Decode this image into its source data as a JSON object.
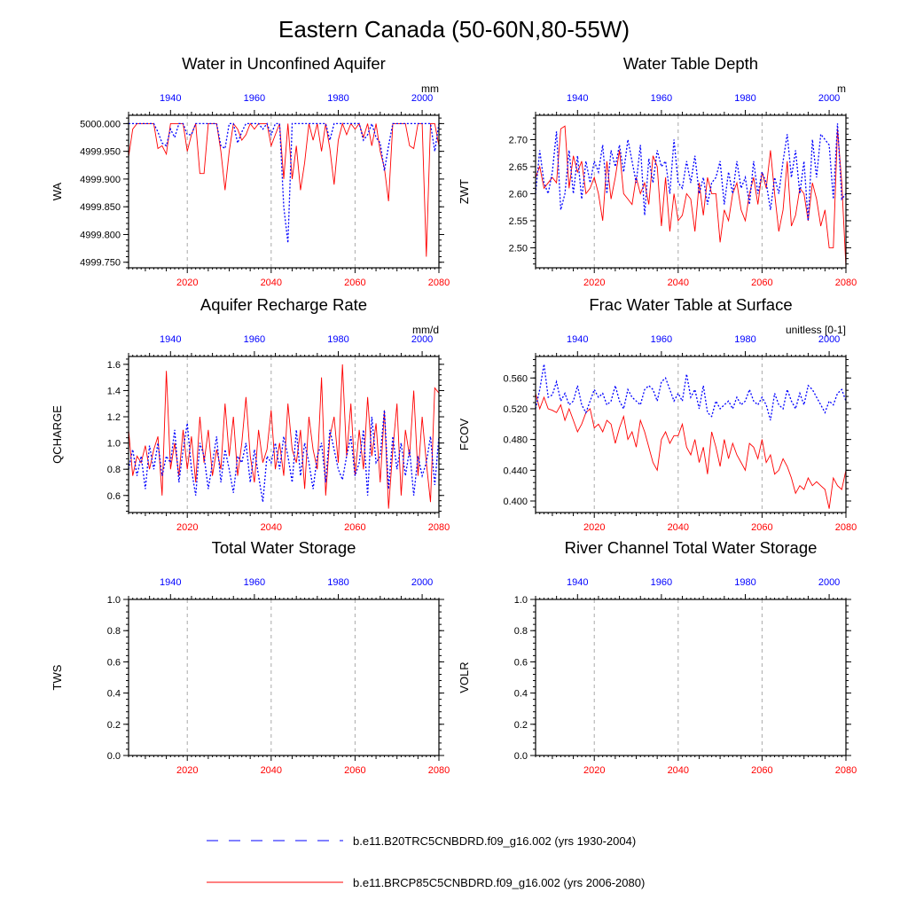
{
  "suptitle": "Eastern Canada (50-60N,80-55W)",
  "colors": {
    "future": "#ff0000",
    "hist": "#0000ff",
    "grid": "#aaaaaa",
    "axis": "#000000"
  },
  "legend": {
    "hist_label": "b.e11.B20TRC5CNBDRD.f09_g16.002 (yrs 1930-2004)",
    "future_label": "b.e11.BRCP85C5CNBDRD.f09_g16.002 (yrs 2006-2080)"
  },
  "chart_data": [
    {
      "type": "line",
      "title": "Water in Unconfined Aquifer",
      "ylabel": "WA",
      "units": "mm",
      "ylim": [
        4999.74,
        5000.015
      ],
      "yticks": [
        4999.75,
        4999.8,
        4999.85,
        4999.9,
        4999.95,
        5000.0
      ],
      "ytick_labels": [
        "4999.750",
        "4999.800",
        "4999.850",
        "4999.900",
        "4999.950",
        "5000.000"
      ],
      "ydigits": 3,
      "bottom_axis": {
        "range": [
          2006,
          2080
        ],
        "ticks": [
          2020,
          2040,
          2060,
          2080
        ],
        "labels": [
          "2020",
          "2040",
          "2060",
          "2080"
        ]
      },
      "top_axis": {
        "range": [
          1930,
          2004
        ],
        "ticks": [
          1940,
          1960,
          1980,
          2000
        ],
        "labels": [
          "1940",
          "1960",
          "1980",
          "2000"
        ]
      },
      "series": [
        {
          "name": "b.e11.BRCP85C5CNBDRD.f09_g16.002",
          "period": "2006-2080",
          "values": [
            4999.94,
            4999.99,
            5000.0,
            5000.0,
            5000.0,
            5000.0,
            5000.0,
            4999.955,
            4999.96,
            4999.945,
            5000.0,
            5000.0,
            5000.0,
            5000.0,
            4999.95,
            4999.98,
            5000.0,
            4999.91,
            4999.91,
            5000.0,
            5000.0,
            5000.0,
            4999.95,
            4999.88,
            4999.95,
            5000.0,
            4999.99,
            4999.97,
            4999.98,
            5000.0,
            4999.99,
            5000.0,
            5000.0,
            5000.0,
            4999.96,
            4999.98,
            5000.0,
            4999.9,
            5000.0,
            4999.9,
            4999.96,
            4999.88,
            4999.93,
            5000.0,
            4999.97,
            5000.0,
            4999.95,
            5000.0,
            4999.955,
            4999.89,
            4999.97,
            5000.0,
            4999.98,
            5000.0,
            4999.99,
            5000.0,
            4999.975,
            5000.0,
            4999.96,
            5000.0,
            4999.95,
            4999.92,
            4999.86,
            5000.0,
            5000.0,
            5000.0,
            5000.0,
            4999.96,
            4999.955,
            5000.0,
            5000.0,
            4999.76,
            5000.0,
            5000.0,
            4999.96
          ]
        },
        {
          "name": "b.e11.B20TRC5CNBDRD.f09_g16.002",
          "period": "1930-2004",
          "values": [
            5000.0,
            5000.0,
            5000.0,
            5000.0,
            5000.0,
            5000.0,
            5000.0,
            4999.985,
            4999.965,
            4999.96,
            4999.99,
            4999.975,
            5000.0,
            5000.0,
            4999.98,
            4999.98,
            5000.0,
            5000.0,
            5000.0,
            5000.0,
            5000.0,
            5000.0,
            4999.96,
            4999.955,
            5000.0,
            5000.0,
            4999.965,
            4999.985,
            5000.0,
            5000.0,
            5000.0,
            5000.0,
            4999.99,
            5000.0,
            4999.98,
            5000.0,
            5000.0,
            4999.85,
            4999.785,
            5000.0,
            5000.0,
            5000.0,
            5000.0,
            5000.0,
            5000.0,
            5000.0,
            5000.0,
            5000.0,
            4999.97,
            5000.0,
            5000.0,
            5000.0,
            5000.0,
            5000.0,
            5000.0,
            5000.0,
            4999.97,
            4999.98,
            5000.0,
            4999.975,
            4999.965,
            4999.915,
            4999.96,
            5000.0,
            5000.0,
            5000.0,
            5000.0,
            5000.0,
            5000.0,
            5000.0,
            5000.0,
            5000.0,
            5000.0,
            4999.95,
            5000.0
          ]
        }
      ]
    },
    {
      "type": "line",
      "title": "Water Table Depth",
      "ylabel": "ZWT",
      "units": "m",
      "ylim": [
        2.463,
        2.745
      ],
      "yticks": [
        2.5,
        2.55,
        2.6,
        2.65,
        2.7
      ],
      "ytick_labels": [
        "2.50",
        "2.55",
        "2.60",
        "2.65",
        "2.70"
      ],
      "ydigits": 2,
      "bottom_axis": {
        "range": [
          2006,
          2080
        ],
        "ticks": [
          2020,
          2040,
          2060,
          2080
        ],
        "labels": [
          "2020",
          "2040",
          "2060",
          "2080"
        ]
      },
      "top_axis": {
        "range": [
          1930,
          2004
        ],
        "ticks": [
          1940,
          1960,
          1980,
          2000
        ],
        "labels": [
          "1940",
          "1960",
          "1980",
          "2000"
        ]
      },
      "series": [
        {
          "name": "b.e11.BRCP85C5CNBDRD.f09_g16.002",
          "period": "2006-2080",
          "values": [
            2.63,
            2.65,
            2.61,
            2.62,
            2.63,
            2.62,
            2.72,
            2.725,
            2.61,
            2.67,
            2.64,
            2.66,
            2.6,
            2.61,
            2.63,
            2.6,
            2.55,
            2.66,
            2.59,
            2.63,
            2.68,
            2.6,
            2.59,
            2.58,
            2.63,
            2.6,
            2.62,
            2.58,
            2.67,
            2.65,
            2.54,
            2.63,
            2.53,
            2.6,
            2.55,
            2.56,
            2.6,
            2.59,
            2.53,
            2.62,
            2.56,
            2.63,
            2.6,
            2.6,
            2.51,
            2.57,
            2.55,
            2.6,
            2.62,
            2.57,
            2.55,
            2.6,
            2.63,
            2.58,
            2.64,
            2.61,
            2.68,
            2.6,
            2.53,
            2.57,
            2.66,
            2.54,
            2.56,
            2.61,
            2.6,
            2.55,
            2.62,
            2.59,
            2.54,
            2.57,
            2.5,
            2.5,
            2.72,
            2.62,
            2.465
          ]
        },
        {
          "name": "b.e11.B20TRC5CNBDRD.f09_g16.002",
          "period": "1930-2004",
          "values": [
            2.6,
            2.68,
            2.62,
            2.6,
            2.64,
            2.715,
            2.57,
            2.6,
            2.68,
            2.6,
            2.67,
            2.59,
            2.66,
            2.62,
            2.66,
            2.64,
            2.69,
            2.6,
            2.68,
            2.65,
            2.69,
            2.64,
            2.7,
            2.66,
            2.62,
            2.69,
            2.56,
            2.665,
            2.62,
            2.68,
            2.65,
            2.66,
            2.6,
            2.7,
            2.62,
            2.61,
            2.66,
            2.62,
            2.67,
            2.6,
            2.63,
            2.58,
            2.62,
            2.63,
            2.66,
            2.58,
            2.64,
            2.6,
            2.66,
            2.61,
            2.63,
            2.58,
            2.66,
            2.6,
            2.64,
            2.62,
            2.57,
            2.63,
            2.6,
            2.66,
            2.71,
            2.63,
            2.68,
            2.6,
            2.66,
            2.55,
            2.7,
            2.63,
            2.71,
            2.7,
            2.69,
            2.59,
            2.73,
            2.59,
            2.6
          ]
        }
      ]
    },
    {
      "type": "line",
      "title": "Aquifer Recharge Rate",
      "ylabel": "QCHARGE",
      "units": "mm/d",
      "ylim": [
        0.47,
        1.66
      ],
      "yticks": [
        0.6,
        0.8,
        1.0,
        1.2,
        1.4,
        1.6
      ],
      "ytick_labels": [
        "0.6",
        "0.8",
        "1.0",
        "1.2",
        "1.4",
        "1.6"
      ],
      "ydigits": 1,
      "bottom_axis": {
        "range": [
          2006,
          2080
        ],
        "ticks": [
          2020,
          2040,
          2060,
          2080
        ],
        "labels": [
          "2020",
          "2040",
          "2060",
          "2080"
        ]
      },
      "top_axis": {
        "range": [
          1930,
          2004
        ],
        "ticks": [
          1940,
          1960,
          1980,
          2000
        ],
        "labels": [
          "1940",
          "1960",
          "1980",
          "2000"
        ]
      },
      "series": [
        {
          "name": "b.e11.BRCP85C5CNBDRD.f09_g16.002",
          "period": "2006-2080",
          "values": [
            1.1,
            0.75,
            0.9,
            0.85,
            0.98,
            0.8,
            0.95,
            1.05,
            0.6,
            1.55,
            0.8,
            1.0,
            0.75,
            1.1,
            0.8,
            1.05,
            0.7,
            1.2,
            0.85,
            1.1,
            0.75,
            0.95,
            0.8,
            1.3,
            0.9,
            1.2,
            0.75,
            1.0,
            1.35,
            0.9,
            0.7,
            1.1,
            0.85,
            0.95,
            1.25,
            0.8,
            1.0,
            0.75,
            1.3,
            0.95,
            0.85,
            1.1,
            0.65,
            1.2,
            0.95,
            0.8,
            1.5,
            0.6,
            1.05,
            1.2,
            0.85,
            1.6,
            0.9,
            1.3,
            0.75,
            1.1,
            0.8,
            1.35,
            0.9,
            1.15,
            0.7,
            1.25,
            0.5,
            0.95,
            1.3,
            0.6,
            1.1,
            0.9,
            1.4,
            0.75,
            1.2,
            0.85,
            0.55,
            1.42,
            1.38
          ]
        },
        {
          "name": "b.e11.B20TRC5CNBDRD.f09_g16.002",
          "period": "1930-2004",
          "values": [
            0.8,
            0.95,
            0.75,
            0.9,
            0.65,
            0.98,
            0.8,
            1.0,
            0.75,
            0.9,
            0.85,
            1.1,
            0.7,
            0.95,
            1.15,
            0.8,
            0.6,
            1.0,
            0.9,
            0.65,
            0.85,
            1.05,
            0.7,
            0.95,
            0.8,
            0.62,
            0.9,
            0.85,
            1.0,
            0.7,
            0.95,
            0.75,
            0.55,
            0.9,
            0.85,
            1.0,
            0.8,
            1.05,
            0.9,
            0.7,
            1.1,
            0.75,
            1.0,
            0.85,
            0.65,
            0.9,
            1.0,
            0.7,
            1.1,
            0.95,
            0.8,
            0.72,
            0.9,
            1.05,
            0.75,
            0.85,
            1.1,
            0.6,
            1.2,
            0.85,
            0.9,
            1.25,
            0.65,
            1.05,
            0.8,
            1.0,
            0.75,
            0.95,
            0.6,
            0.9,
            0.75,
            0.85,
            1.05,
            0.68,
            1.05
          ]
        }
      ]
    },
    {
      "type": "line",
      "title": "Frac Water Table at Surface",
      "ylabel": "FCOV",
      "units": "unitless [0-1]",
      "ylim": [
        0.385,
        0.588
      ],
      "yticks": [
        0.4,
        0.44,
        0.48,
        0.52,
        0.56
      ],
      "ytick_labels": [
        "0.400",
        "0.440",
        "0.480",
        "0.520",
        "0.560"
      ],
      "ydigits": 3,
      "bottom_axis": {
        "range": [
          2006,
          2080
        ],
        "ticks": [
          2020,
          2040,
          2060,
          2080
        ],
        "labels": [
          "2020",
          "2040",
          "2060",
          "2080"
        ]
      },
      "top_axis": {
        "range": [
          1930,
          2004
        ],
        "ticks": [
          1940,
          1960,
          1980,
          2000
        ],
        "labels": [
          "1940",
          "1960",
          "1980",
          "2000"
        ]
      },
      "series": [
        {
          "name": "b.e11.BRCP85C5CNBDRD.f09_g16.002",
          "period": "2006-2080",
          "values": [
            0.54,
            0.52,
            0.535,
            0.52,
            0.518,
            0.515,
            0.525,
            0.505,
            0.52,
            0.505,
            0.49,
            0.5,
            0.515,
            0.52,
            0.495,
            0.5,
            0.49,
            0.505,
            0.5,
            0.475,
            0.495,
            0.51,
            0.48,
            0.49,
            0.47,
            0.505,
            0.49,
            0.47,
            0.45,
            0.44,
            0.48,
            0.49,
            0.475,
            0.485,
            0.485,
            0.5,
            0.47,
            0.46,
            0.48,
            0.45,
            0.47,
            0.435,
            0.49,
            0.47,
            0.445,
            0.48,
            0.455,
            0.475,
            0.46,
            0.45,
            0.44,
            0.475,
            0.47,
            0.455,
            0.48,
            0.45,
            0.46,
            0.435,
            0.44,
            0.455,
            0.445,
            0.43,
            0.41,
            0.42,
            0.415,
            0.43,
            0.42,
            0.425,
            0.42,
            0.415,
            0.39,
            0.43,
            0.42,
            0.415,
            0.44
          ]
        },
        {
          "name": "b.e11.B20TRC5CNBDRD.f09_g16.002",
          "period": "1930-2004",
          "values": [
            0.52,
            0.545,
            0.578,
            0.535,
            0.538,
            0.555,
            0.53,
            0.54,
            0.525,
            0.53,
            0.55,
            0.525,
            0.515,
            0.53,
            0.545,
            0.535,
            0.54,
            0.525,
            0.53,
            0.55,
            0.53,
            0.52,
            0.545,
            0.535,
            0.53,
            0.525,
            0.545,
            0.55,
            0.545,
            0.53,
            0.555,
            0.56,
            0.545,
            0.53,
            0.54,
            0.53,
            0.565,
            0.535,
            0.545,
            0.52,
            0.55,
            0.515,
            0.51,
            0.53,
            0.52,
            0.525,
            0.53,
            0.52,
            0.535,
            0.525,
            0.53,
            0.545,
            0.53,
            0.525,
            0.535,
            0.525,
            0.505,
            0.54,
            0.525,
            0.52,
            0.545,
            0.53,
            0.52,
            0.54,
            0.525,
            0.55,
            0.545,
            0.535,
            0.525,
            0.515,
            0.53,
            0.525,
            0.54,
            0.545,
            0.53
          ]
        }
      ]
    },
    {
      "type": "line",
      "title": "Total Water Storage",
      "ylabel": "TWS",
      "units": "",
      "ylim": [
        0.0,
        1.0
      ],
      "yticks": [
        0.0,
        0.2,
        0.4,
        0.6,
        0.8,
        1.0
      ],
      "ytick_labels": [
        "0.0",
        "0.2",
        "0.4",
        "0.6",
        "0.8",
        "1.0"
      ],
      "ydigits": 1,
      "bottom_axis": {
        "range": [
          2006,
          2080
        ],
        "ticks": [
          2020,
          2040,
          2060,
          2080
        ],
        "labels": [
          "2020",
          "2040",
          "2060",
          "2080"
        ]
      },
      "top_axis": {
        "range": [
          1930,
          2004
        ],
        "ticks": [
          1940,
          1960,
          1980,
          2000
        ],
        "labels": [
          "1940",
          "1960",
          "1980",
          "2000"
        ]
      },
      "series": []
    },
    {
      "type": "line",
      "title": "River Channel Total Water Storage",
      "ylabel": "VOLR",
      "units": "",
      "ylim": [
        0.0,
        1.0
      ],
      "yticks": [
        0.0,
        0.2,
        0.4,
        0.6,
        0.8,
        1.0
      ],
      "ytick_labels": [
        "0.0",
        "0.2",
        "0.4",
        "0.6",
        "0.8",
        "1.0"
      ],
      "ydigits": 1,
      "bottom_axis": {
        "range": [
          2006,
          2080
        ],
        "ticks": [
          2020,
          2040,
          2060,
          2080
        ],
        "labels": [
          "2020",
          "2040",
          "2060",
          "2080"
        ]
      },
      "top_axis": {
        "range": [
          1930,
          2004
        ],
        "ticks": [
          1940,
          1960,
          1980,
          2000
        ],
        "labels": [
          "1940",
          "1960",
          "1980",
          "2000"
        ]
      },
      "series": []
    }
  ]
}
